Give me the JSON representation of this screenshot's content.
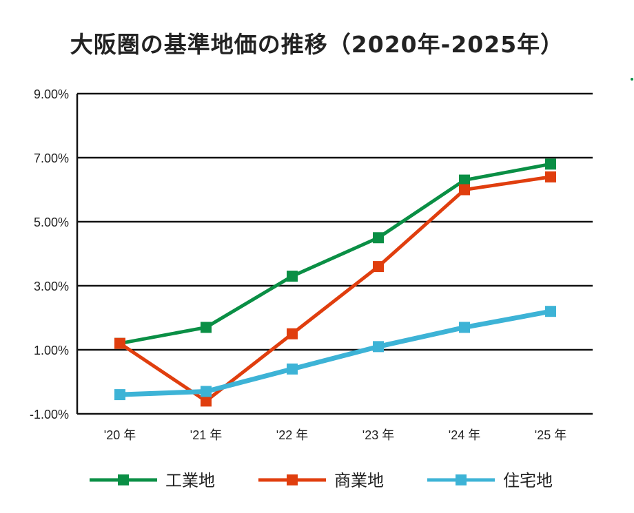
{
  "chart_data": {
    "type": "line",
    "title": "大阪圏の基準地価の推移（2020年-2025年）",
    "categories": [
      "'20 年",
      "'21 年",
      "'22 年",
      "'23 年",
      "'24 年",
      "'25 年"
    ],
    "y_ticks": [
      "9.00%",
      "7.00%",
      "5.00%",
      "3.00%",
      "1.00%",
      "-1.00%"
    ],
    "ylim": [
      -1,
      9
    ],
    "grid": true,
    "legend_position": "bottom",
    "series": [
      {
        "name": "工業地",
        "color": "#0a8f45",
        "values": [
          1.2,
          1.7,
          3.3,
          4.5,
          6.3,
          6.8
        ]
      },
      {
        "name": "商業地",
        "color": "#e03e0e",
        "values": [
          1.2,
          -0.6,
          1.5,
          3.6,
          6.0,
          6.4
        ]
      },
      {
        "name": "住宅地",
        "color": "#3db3d6",
        "values": [
          -0.4,
          -0.3,
          0.4,
          1.1,
          1.7,
          2.2
        ]
      }
    ]
  }
}
